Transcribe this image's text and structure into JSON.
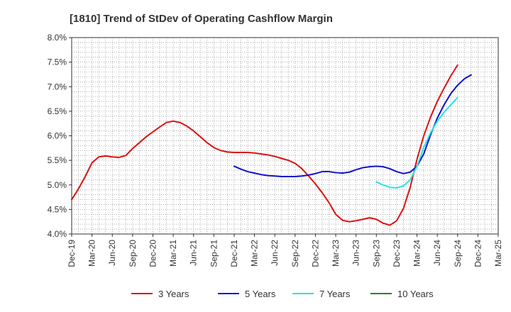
{
  "chart_data": {
    "type": "line",
    "title": "[1810]  Trend of StDev of Operating Cashflow Margin",
    "xlabel": "",
    "ylabel": "",
    "x": [
      "Dec-19",
      "Mar-20",
      "Jun-20",
      "Sep-20",
      "Dec-20",
      "Mar-21",
      "Jun-21",
      "Sep-21",
      "Dec-21",
      "Mar-22",
      "Jun-22",
      "Sep-22",
      "Dec-22",
      "Mar-23",
      "Jun-23",
      "Sep-23",
      "Dec-23",
      "Mar-24",
      "Jun-24",
      "Sep-24",
      "Dec-24",
      "Mar-25"
    ],
    "x_tick_labels": [
      "Dec-19",
      "Mar-20",
      "Jun-20",
      "Sep-20",
      "Dec-20",
      "Mar-21",
      "Jun-21",
      "Sep-21",
      "Dec-21",
      "Mar-22",
      "Jun-22",
      "Sep-22",
      "Dec-22",
      "Mar-23",
      "Jun-23",
      "Sep-23",
      "Dec-23",
      "Mar-24",
      "Jun-24",
      "Sep-24",
      "Dec-24",
      "Mar-25"
    ],
    "y_tick_labels": [
      "4.0%",
      "4.5%",
      "5.0%",
      "5.5%",
      "6.0%",
      "6.5%",
      "7.0%",
      "7.5%",
      "8.0%"
    ],
    "y_ticks": [
      4.0,
      4.5,
      5.0,
      5.5,
      6.0,
      6.5,
      7.0,
      7.5,
      8.0
    ],
    "ylim": [
      4.0,
      8.0
    ],
    "y_unit": "%",
    "grid": true,
    "grid_style": "dotted",
    "legend_position": "bottom",
    "series": [
      {
        "name": "3 Years",
        "color": "#dd1111",
        "points": [
          [
            "Dec-19",
            4.7
          ],
          [
            "Jan-20",
            4.92
          ],
          [
            "Feb-20",
            5.17
          ],
          [
            "Mar-20",
            5.45
          ],
          [
            "Apr-20",
            5.57
          ],
          [
            "May-20",
            5.59
          ],
          [
            "Jun-20",
            5.57
          ],
          [
            "Jul-20",
            5.56
          ],
          [
            "Aug-20",
            5.6
          ],
          [
            "Sep-20",
            5.74
          ],
          [
            "Oct-20",
            5.86
          ],
          [
            "Nov-20",
            5.98
          ],
          [
            "Dec-20",
            6.08
          ],
          [
            "Jan-21",
            6.18
          ],
          [
            "Feb-21",
            6.27
          ],
          [
            "Mar-21",
            6.3
          ],
          [
            "Apr-21",
            6.27
          ],
          [
            "May-21",
            6.2
          ],
          [
            "Jun-21",
            6.1
          ],
          [
            "Jul-21",
            5.98
          ],
          [
            "Aug-21",
            5.86
          ],
          [
            "Sep-21",
            5.76
          ],
          [
            "Oct-21",
            5.7
          ],
          [
            "Nov-21",
            5.67
          ],
          [
            "Dec-21",
            5.66
          ],
          [
            "Jan-22",
            5.66
          ],
          [
            "Feb-22",
            5.66
          ],
          [
            "Mar-22",
            5.65
          ],
          [
            "Apr-22",
            5.63
          ],
          [
            "May-22",
            5.61
          ],
          [
            "Jun-22",
            5.58
          ],
          [
            "Jul-22",
            5.54
          ],
          [
            "Aug-22",
            5.5
          ],
          [
            "Sep-22",
            5.44
          ],
          [
            "Oct-22",
            5.33
          ],
          [
            "Nov-22",
            5.18
          ],
          [
            "Dec-22",
            5.02
          ],
          [
            "Jan-23",
            4.84
          ],
          [
            "Feb-23",
            4.64
          ],
          [
            "Mar-23",
            4.4
          ],
          [
            "Apr-23",
            4.28
          ],
          [
            "May-23",
            4.25
          ],
          [
            "Jun-23",
            4.27
          ],
          [
            "Jul-23",
            4.3
          ],
          [
            "Aug-23",
            4.33
          ],
          [
            "Sep-23",
            4.3
          ],
          [
            "Oct-23",
            4.22
          ],
          [
            "Nov-23",
            4.18
          ],
          [
            "Dec-23",
            4.27
          ],
          [
            "Jan-24",
            4.52
          ],
          [
            "Feb-24",
            4.95
          ],
          [
            "Mar-24",
            5.52
          ],
          [
            "Apr-24",
            6.0
          ],
          [
            "May-24",
            6.38
          ],
          [
            "Jun-24",
            6.7
          ],
          [
            "Jul-24",
            6.97
          ],
          [
            "Aug-24",
            7.22
          ],
          [
            "Sep-24",
            7.44
          ]
        ]
      },
      {
        "name": "5 Years",
        "color": "#1111cc",
        "points": [
          [
            "Dec-21",
            5.38
          ],
          [
            "Jan-22",
            5.32
          ],
          [
            "Feb-22",
            5.27
          ],
          [
            "Mar-22",
            5.24
          ],
          [
            "Apr-22",
            5.21
          ],
          [
            "May-22",
            5.19
          ],
          [
            "Jun-22",
            5.18
          ],
          [
            "Jul-22",
            5.17
          ],
          [
            "Aug-22",
            5.17
          ],
          [
            "Sep-22",
            5.17
          ],
          [
            "Oct-22",
            5.18
          ],
          [
            "Nov-22",
            5.2
          ],
          [
            "Dec-22",
            5.23
          ],
          [
            "Jan-23",
            5.27
          ],
          [
            "Feb-23",
            5.27
          ],
          [
            "Mar-23",
            5.25
          ],
          [
            "Apr-23",
            5.24
          ],
          [
            "May-23",
            5.26
          ],
          [
            "Jun-23",
            5.31
          ],
          [
            "Jul-23",
            5.35
          ],
          [
            "Aug-23",
            5.37
          ],
          [
            "Sep-23",
            5.38
          ],
          [
            "Oct-23",
            5.37
          ],
          [
            "Nov-23",
            5.33
          ],
          [
            "Dec-23",
            5.27
          ],
          [
            "Jan-24",
            5.23
          ],
          [
            "Feb-24",
            5.26
          ],
          [
            "Mar-24",
            5.38
          ],
          [
            "Apr-24",
            5.63
          ],
          [
            "May-24",
            6.02
          ],
          [
            "Jun-24",
            6.36
          ],
          [
            "Jul-24",
            6.63
          ],
          [
            "Aug-24",
            6.86
          ],
          [
            "Sep-24",
            7.03
          ],
          [
            "Oct-24",
            7.16
          ],
          [
            "Nov-24",
            7.24
          ]
        ]
      },
      {
        "name": "7 Years",
        "color": "#22e5e5",
        "points": [
          [
            "Sep-23",
            5.06
          ],
          [
            "Oct-23",
            5.0
          ],
          [
            "Nov-23",
            4.95
          ],
          [
            "Dec-23",
            4.94
          ],
          [
            "Jan-24",
            4.98
          ],
          [
            "Feb-24",
            5.1
          ],
          [
            "Mar-24",
            5.38
          ],
          [
            "Apr-24",
            5.76
          ],
          [
            "May-24",
            6.06
          ],
          [
            "Jun-24",
            6.3
          ],
          [
            "Jul-24",
            6.48
          ],
          [
            "Aug-24",
            6.63
          ],
          [
            "Sep-24",
            6.78
          ]
        ]
      },
      {
        "name": "10 Years",
        "color": "#228822",
        "points": []
      }
    ]
  }
}
